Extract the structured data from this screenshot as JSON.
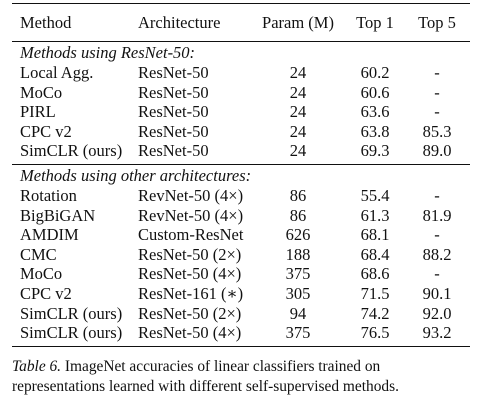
{
  "header": {
    "method": "Method",
    "architecture": "Architecture",
    "param": "Param (M)",
    "top1": "Top 1",
    "top5": "Top 5"
  },
  "sections": [
    {
      "title": "Methods using ResNet-50:",
      "rows": [
        {
          "method": "Local Agg.",
          "arch": "ResNet-50",
          "param": "24",
          "top1": "60.2",
          "top5": "-"
        },
        {
          "method": "MoCo",
          "arch": "ResNet-50",
          "param": "24",
          "top1": "60.6",
          "top5": "-"
        },
        {
          "method": "PIRL",
          "arch": "ResNet-50",
          "param": "24",
          "top1": "63.6",
          "top5": "-"
        },
        {
          "method": "CPC v2",
          "arch": "ResNet-50",
          "param": "24",
          "top1": "63.8",
          "top5": "85.3"
        },
        {
          "method": "SimCLR (ours)",
          "arch": "ResNet-50",
          "param": "24",
          "top1": "69.3",
          "top5": "89.0",
          "bold": true
        }
      ]
    },
    {
      "title": "Methods using other architectures:",
      "rows": [
        {
          "method": "Rotation",
          "arch": "RevNet-50 (4×)",
          "param": "86",
          "top1": "55.4",
          "top5": "-"
        },
        {
          "method": "BigBiGAN",
          "arch": "RevNet-50 (4×)",
          "param": "86",
          "top1": "61.3",
          "top5": "81.9"
        },
        {
          "method": "AMDIM",
          "arch": "Custom-ResNet",
          "param": "626",
          "top1": "68.1",
          "top5": "-"
        },
        {
          "method": "CMC",
          "arch": "ResNet-50 (2×)",
          "param": "188",
          "top1": "68.4",
          "top5": "88.2"
        },
        {
          "method": "MoCo",
          "arch": "ResNet-50 (4×)",
          "param": "375",
          "top1": "68.6",
          "top5": "-"
        },
        {
          "method": "CPC v2",
          "arch": "ResNet-161 (∗)",
          "param": "305",
          "top1": "71.5",
          "top5": "90.1"
        },
        {
          "method": "SimCLR (ours)",
          "arch": "ResNet-50 (2×)",
          "param": "94",
          "top1": "74.2",
          "top5": "92.0"
        },
        {
          "method": "SimCLR (ours)",
          "arch": "ResNet-50 (4×)",
          "param": "375",
          "top1": "76.5",
          "top5": "93.2",
          "bold": true
        }
      ]
    }
  ],
  "caption": {
    "label": "Table 6.",
    "text": " ImageNet accuracies of linear classifiers trained on representations learned with different self-supervised methods."
  }
}
